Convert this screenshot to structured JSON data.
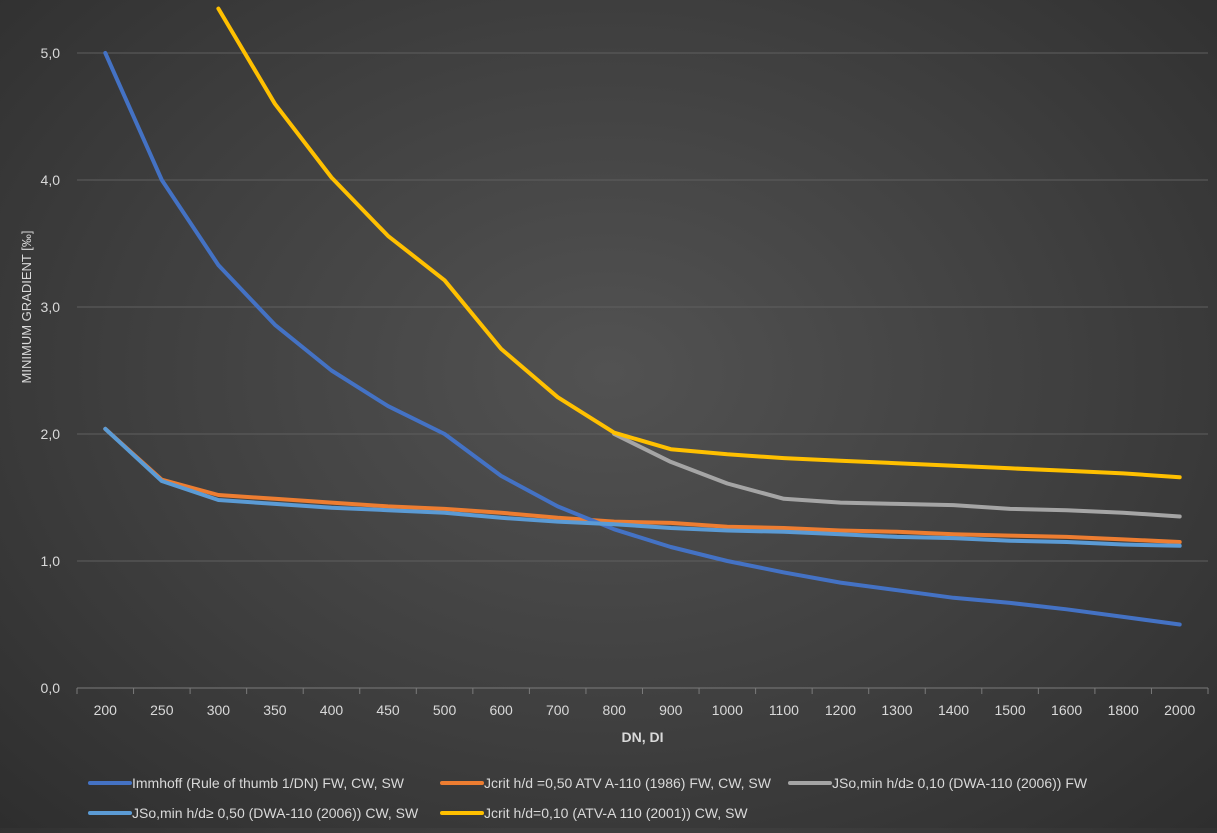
{
  "chart_data": {
    "type": "line",
    "title": "",
    "xlabel": "DN, DI",
    "ylabel": "MINIMUM GRADIENT [‰]",
    "categories": [
      "200",
      "250",
      "300",
      "350",
      "400",
      "450",
      "500",
      "600",
      "700",
      "800",
      "900",
      "1000",
      "1100",
      "1200",
      "1300",
      "1400",
      "1500",
      "1600",
      "1800",
      "2000"
    ],
    "y_ticks": [
      "0,0",
      "1,0",
      "2,0",
      "3,0",
      "4,0",
      "5,0"
    ],
    "ylim": [
      0,
      5.5
    ],
    "grid": "horizontal",
    "legend_position": "bottom",
    "series": [
      {
        "name": "Immhoff (Rule of thumb 1/DN) FW, CW, SW",
        "color": "#4472c4",
        "values": [
          5.0,
          4.0,
          3.33,
          2.86,
          2.5,
          2.22,
          2.0,
          1.67,
          1.43,
          1.25,
          1.11,
          1.0,
          0.91,
          0.83,
          0.77,
          0.71,
          0.67,
          0.62,
          0.56,
          0.5
        ]
      },
      {
        "name": "Jcrit h/d =0,50 ATV A-110 (1986) FW, CW, SW",
        "color": "#ed7d31",
        "values": [
          2.04,
          1.64,
          1.52,
          1.49,
          1.46,
          1.43,
          1.41,
          1.38,
          1.34,
          1.31,
          1.3,
          1.27,
          1.26,
          1.24,
          1.23,
          1.21,
          1.2,
          1.19,
          1.17,
          1.15
        ]
      },
      {
        "name": "JSo,min h/d≥ 0,10 (DWA-110 (2006)) FW",
        "color": "#a5a5a5",
        "values": [
          null,
          null,
          null,
          null,
          null,
          null,
          null,
          null,
          null,
          2.0,
          1.78,
          1.61,
          1.49,
          1.46,
          1.45,
          1.44,
          1.41,
          1.4,
          1.38,
          1.35
        ]
      },
      {
        "name": "JSo,min h/d≥ 0,50 (DWA-110 (2006)) CW, SW",
        "color": "#5b9bd5",
        "values": [
          2.04,
          1.63,
          1.48,
          1.45,
          1.42,
          1.4,
          1.38,
          1.34,
          1.31,
          1.29,
          1.26,
          1.24,
          1.23,
          1.21,
          1.19,
          1.18,
          1.16,
          1.15,
          1.13,
          1.12
        ]
      },
      {
        "name": "Jcrit h/d=0,10 (ATV-A 110 (2001)) CW, SW",
        "color": "#ffc000",
        "values": [
          null,
          null,
          5.35,
          4.6,
          4.02,
          3.56,
          3.21,
          2.67,
          2.29,
          2.01,
          1.88,
          1.84,
          1.81,
          1.79,
          1.77,
          1.75,
          1.73,
          1.71,
          1.69,
          1.66
        ]
      }
    ]
  }
}
